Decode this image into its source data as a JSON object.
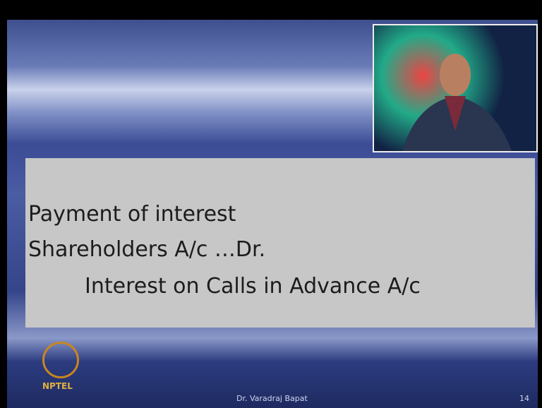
{
  "slide": {
    "lines": [
      "Payment of interest",
      "Shareholders A/c …Dr.",
      "Interest on Calls in Advance A/c"
    ],
    "logo_text": "NPTEL",
    "presenter": "Dr. Varadraj Bapat",
    "page_number": "14"
  }
}
